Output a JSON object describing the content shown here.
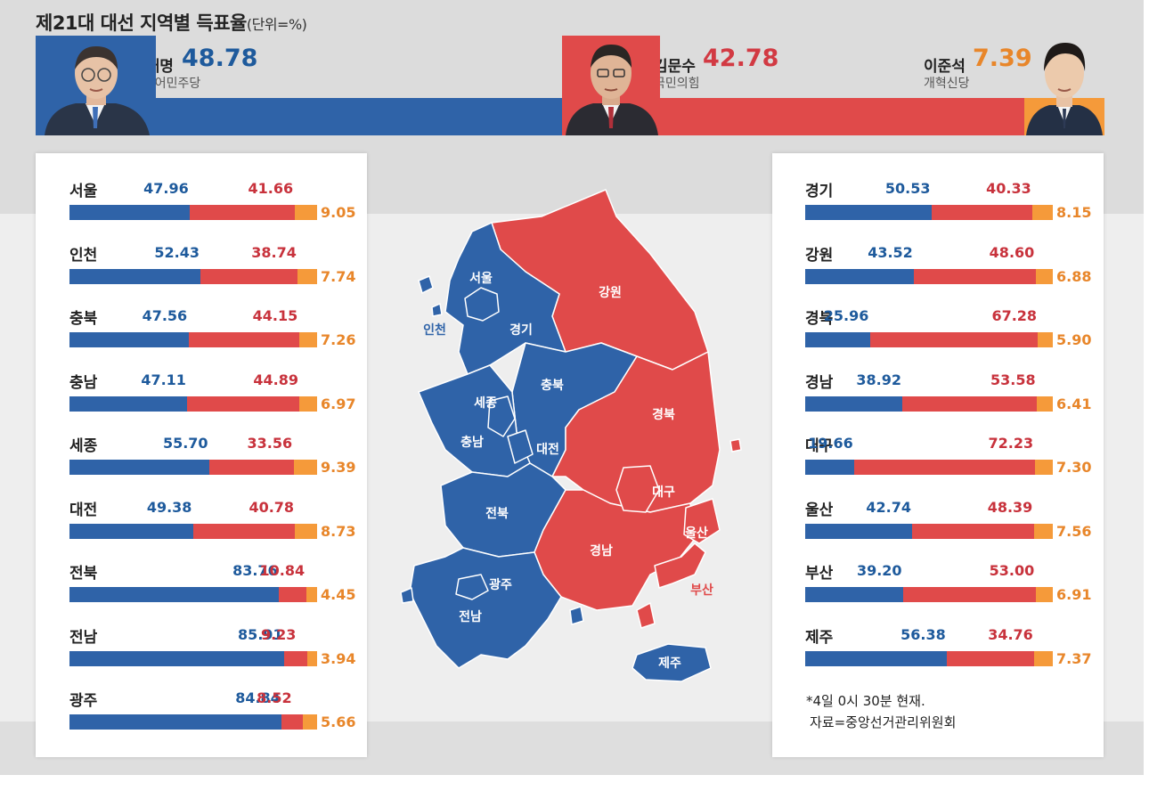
{
  "title": "제21대 대선 지역별 득표율",
  "unit": "(단위=%)",
  "colors": {
    "lee": "#2f63a8",
    "kim": "#e04a4a",
    "lee_js": "#f59a3a"
  },
  "candidates": [
    {
      "name": "이재명",
      "pct": "48.78",
      "party": "더불어민주당",
      "color": "#1e5a9c",
      "photo": "person-photo-lee-jae-myung"
    },
    {
      "name": "김문수",
      "pct": "42.78",
      "party": "국민의힘",
      "color": "#d23a43",
      "photo": "person-photo-kim-moon-soo"
    },
    {
      "name": "이준석",
      "pct": "7.39",
      "party": "개혁신당",
      "color": "#e8862a",
      "photo": "person-photo-lee-jun-seok"
    }
  ],
  "chart_data": {
    "type": "bar",
    "stacked": true,
    "series_names": [
      "이재명",
      "김문수",
      "이준석"
    ],
    "national": [
      48.78,
      42.78,
      7.39
    ],
    "left": [
      {
        "region": "서울",
        "values": [
          "47.96",
          "41.66",
          "9.05"
        ]
      },
      {
        "region": "인천",
        "values": [
          "52.43",
          "38.74",
          "7.74"
        ]
      },
      {
        "region": "충북",
        "values": [
          "47.56",
          "44.15",
          "7.26"
        ]
      },
      {
        "region": "충남",
        "values": [
          "47.11",
          "44.89",
          "6.97"
        ]
      },
      {
        "region": "세종",
        "values": [
          "55.70",
          "33.56",
          "9.39"
        ]
      },
      {
        "region": "대전",
        "values": [
          "49.38",
          "40.78",
          "8.73"
        ]
      },
      {
        "region": "전북",
        "values": [
          "83.76",
          "10.84",
          "4.45"
        ]
      },
      {
        "region": "전남",
        "values": [
          "85.91",
          "9.23",
          "3.94"
        ]
      },
      {
        "region": "광주",
        "values": [
          "84.84",
          "8.52",
          "5.66"
        ]
      }
    ],
    "right": [
      {
        "region": "경기",
        "values": [
          "50.53",
          "40.33",
          "8.15"
        ]
      },
      {
        "region": "강원",
        "values": [
          "43.52",
          "48.60",
          "6.88"
        ]
      },
      {
        "region": "경북",
        "values": [
          "25.96",
          "67.28",
          "5.90"
        ]
      },
      {
        "region": "경남",
        "values": [
          "38.92",
          "53.58",
          "6.41"
        ]
      },
      {
        "region": "대구",
        "values": [
          "19.66",
          "72.23",
          "7.30"
        ]
      },
      {
        "region": "울산",
        "values": [
          "42.74",
          "48.39",
          "7.56"
        ]
      },
      {
        "region": "부산",
        "values": [
          "39.20",
          "53.00",
          "6.91"
        ]
      },
      {
        "region": "제주",
        "values": [
          "56.38",
          "34.76",
          "7.37"
        ]
      }
    ]
  },
  "map": {
    "labels": [
      "서울",
      "인천",
      "경기",
      "강원",
      "충북",
      "세종",
      "충남",
      "대전",
      "경북",
      "대구",
      "울산",
      "전북",
      "경남",
      "광주",
      "전남",
      "부산",
      "제주"
    ]
  },
  "notes": {
    "time": "*4일 0시 30분 현재.",
    "source": "자료=중앙선거관리위원회"
  }
}
